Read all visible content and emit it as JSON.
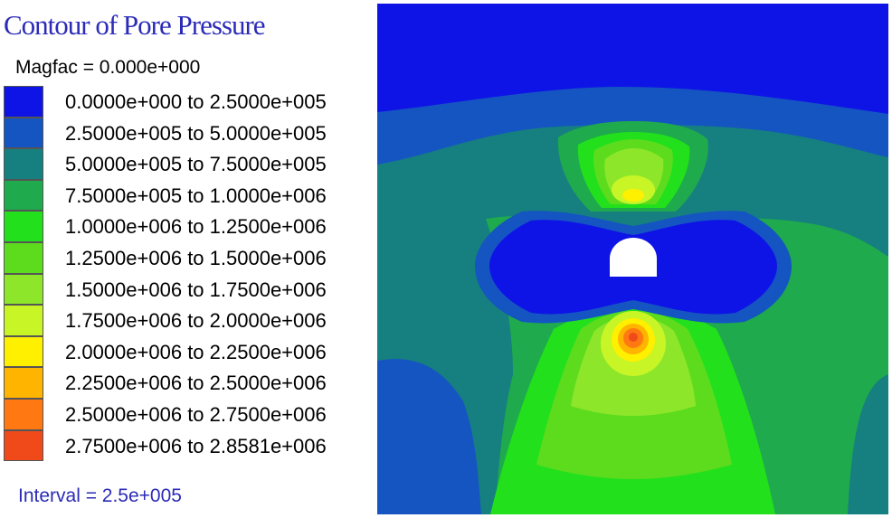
{
  "title": "Contour of Pore Pressure",
  "magfac": "Magfac =  0.000e+000",
  "interval": "Interval =  2.5e+005",
  "legend": [
    {
      "label": "0.0000e+000 to  2.5000e+005",
      "color": "#0f14e6"
    },
    {
      "label": "2.5000e+005 to  5.0000e+005",
      "color": "#1455c2"
    },
    {
      "label": "5.0000e+005 to  7.5000e+005",
      "color": "#167f80"
    },
    {
      "label": "7.5000e+005 to  1.0000e+006",
      "color": "#1faa4d"
    },
    {
      "label": "1.0000e+006 to  1.2500e+006",
      "color": "#22e01c"
    },
    {
      "label": "1.2500e+006 to  1.5000e+006",
      "color": "#5ddc1e"
    },
    {
      "label": "1.5000e+006 to  1.7500e+006",
      "color": "#8ee62b"
    },
    {
      "label": "1.7500e+006 to  2.0000e+006",
      "color": "#c8f526"
    },
    {
      "label": "2.0000e+006 to  2.2500e+006",
      "color": "#fff000"
    },
    {
      "label": "2.2500e+006 to  2.5000e+006",
      "color": "#ffb400"
    },
    {
      "label": "2.5000e+006 to  2.7500e+006",
      "color": "#ff7812"
    },
    {
      "label": "2.7500e+006 to  2.8581e+006",
      "color": "#f04a1a"
    }
  ]
}
